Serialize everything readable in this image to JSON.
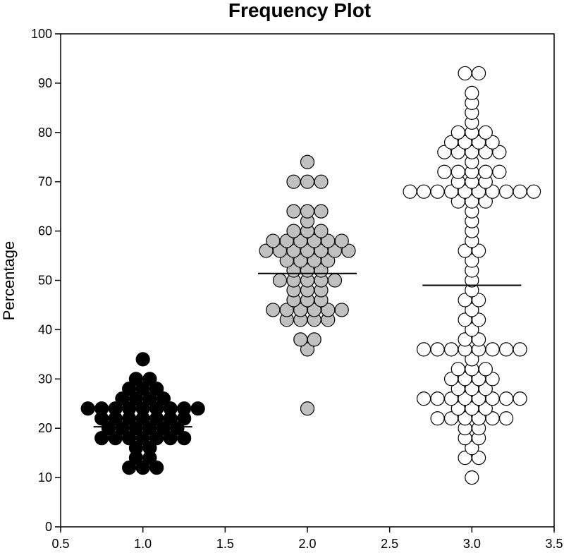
{
  "chart_data": {
    "type": "scatter",
    "title": "Frequency Plot",
    "xlabel": "",
    "ylabel": "Percentage",
    "xlim": [
      0.5,
      3.5
    ],
    "ylim": [
      0,
      100
    ],
    "x_ticks": [
      "0.5",
      "1.0",
      "1.5",
      "2.0",
      "2.5",
      "3.0",
      "3.5"
    ],
    "y_ticks": [
      "0",
      "10",
      "20",
      "30",
      "40",
      "50",
      "60",
      "70",
      "80",
      "90",
      "100"
    ],
    "grid": false,
    "groups": [
      {
        "x": 1.0,
        "fill": "#000000",
        "mean": 20.3,
        "counts": [
          [
            12,
            3
          ],
          [
            14,
            2
          ],
          [
            16,
            2
          ],
          [
            18,
            7
          ],
          [
            20,
            6
          ],
          [
            22,
            7
          ],
          [
            24,
            9
          ],
          [
            26,
            4
          ],
          [
            28,
            3
          ],
          [
            30,
            2
          ],
          [
            34,
            1
          ]
        ]
      },
      {
        "x": 2.0,
        "fill": "#c0c0c0",
        "mean": 51.4,
        "counts": [
          [
            24,
            1
          ],
          [
            36,
            1
          ],
          [
            38,
            2
          ],
          [
            42,
            4
          ],
          [
            44,
            6
          ],
          [
            46,
            3
          ],
          [
            48,
            3
          ],
          [
            50,
            5
          ],
          [
            52,
            3
          ],
          [
            54,
            4
          ],
          [
            56,
            7
          ],
          [
            58,
            6
          ],
          [
            60,
            3
          ],
          [
            62,
            1
          ],
          [
            64,
            3
          ],
          [
            70,
            3
          ],
          [
            74,
            1
          ]
        ]
      },
      {
        "x": 3.0,
        "fill": "#ffffff",
        "mean": 49.0,
        "counts": [
          [
            10,
            1
          ],
          [
            14,
            2
          ],
          [
            16,
            1
          ],
          [
            18,
            2
          ],
          [
            20,
            2
          ],
          [
            22,
            6
          ],
          [
            24,
            3
          ],
          [
            26,
            8
          ],
          [
            28,
            3
          ],
          [
            30,
            4
          ],
          [
            32,
            3
          ],
          [
            34,
            1
          ],
          [
            36,
            8
          ],
          [
            38,
            2
          ],
          [
            40,
            1
          ],
          [
            42,
            2
          ],
          [
            44,
            1
          ],
          [
            46,
            2
          ],
          [
            48,
            1
          ],
          [
            50,
            1
          ],
          [
            52,
            1
          ],
          [
            54,
            1
          ],
          [
            56,
            2
          ],
          [
            58,
            1
          ],
          [
            60,
            1
          ],
          [
            62,
            1
          ],
          [
            64,
            1
          ],
          [
            66,
            3
          ],
          [
            68,
            10
          ],
          [
            70,
            3
          ],
          [
            72,
            5
          ],
          [
            74,
            1
          ],
          [
            76,
            5
          ],
          [
            78,
            4
          ],
          [
            80,
            3
          ],
          [
            82,
            1
          ],
          [
            84,
            1
          ],
          [
            86,
            1
          ],
          [
            88,
            1
          ],
          [
            92,
            2
          ]
        ]
      }
    ]
  }
}
